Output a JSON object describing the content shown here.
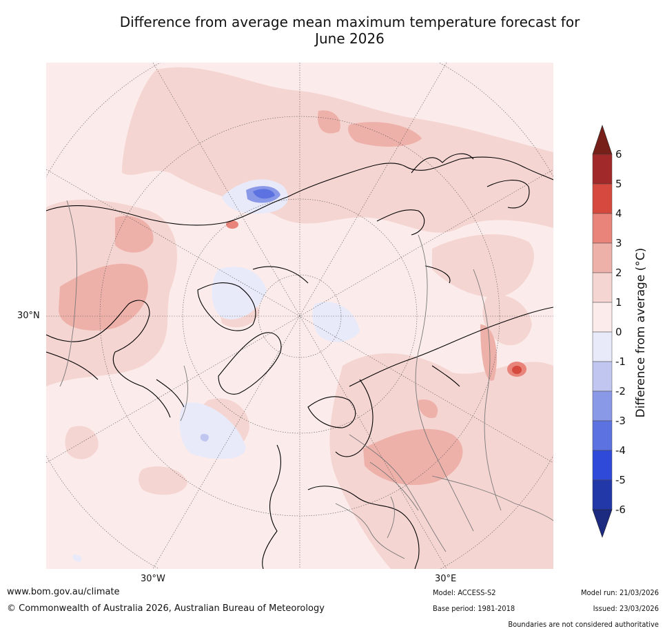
{
  "title_line1": "Difference from average mean maximum temperature forecast for",
  "title_line2": "June 2026",
  "map": {
    "graticule_labels": {
      "lat_30n": "30°N",
      "lon_30w": "30°W",
      "lon_30e": "30°E"
    }
  },
  "colorbar": {
    "label": "Difference from average (°C)",
    "ticks": [
      "6",
      "5",
      "4",
      "3",
      "2",
      "1",
      "0",
      "-1",
      "-2",
      "-3",
      "-4",
      "-5",
      "-6"
    ],
    "band_colors": [
      "#a1292a",
      "#d6493e",
      "#e8847a",
      "#eeb1aa",
      "#f5d5d2",
      "#fbeceb",
      "#e8eafa",
      "#c0c6f0",
      "#8a98e8",
      "#5c72e0",
      "#2f4ad8",
      "#2238a8"
    ],
    "over_color": "#771f19",
    "under_color": "#1c2a80"
  },
  "footer": {
    "website": "www.bom.gov.au/climate",
    "copyright": "© Commonwealth of Australia 2026, Australian Bureau of Meteorology",
    "model": "Model: ACCESS-S2",
    "base_period": "Base period: 1981-2018",
    "model_run": "Model run: 21/03/2026",
    "issued": "Issued: 23/03/2026",
    "disclaimer": "Boundaries are not considered authoritative"
  }
}
